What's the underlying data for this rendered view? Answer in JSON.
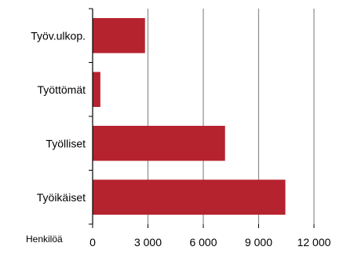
{
  "chart_data": {
    "type": "bar",
    "orientation": "horizontal",
    "categories": [
      "Työikäiset",
      "Työlliset",
      "Työttömät",
      "Työv.ulkop."
    ],
    "values": [
      10450,
      7180,
      420,
      2840
    ],
    "xlim": [
      0,
      12000
    ],
    "xticks": [
      0,
      3000,
      6000,
      9000,
      12000
    ],
    "xtick_labels": [
      "0",
      "3 000",
      "6 000",
      "9 000",
      "12 000"
    ],
    "unit_label": "Henkilöä",
    "title": "",
    "xlabel": "",
    "ylabel": "",
    "grid": true,
    "bar_color": "#B5232E",
    "grid_color": "#8C8C8C"
  }
}
